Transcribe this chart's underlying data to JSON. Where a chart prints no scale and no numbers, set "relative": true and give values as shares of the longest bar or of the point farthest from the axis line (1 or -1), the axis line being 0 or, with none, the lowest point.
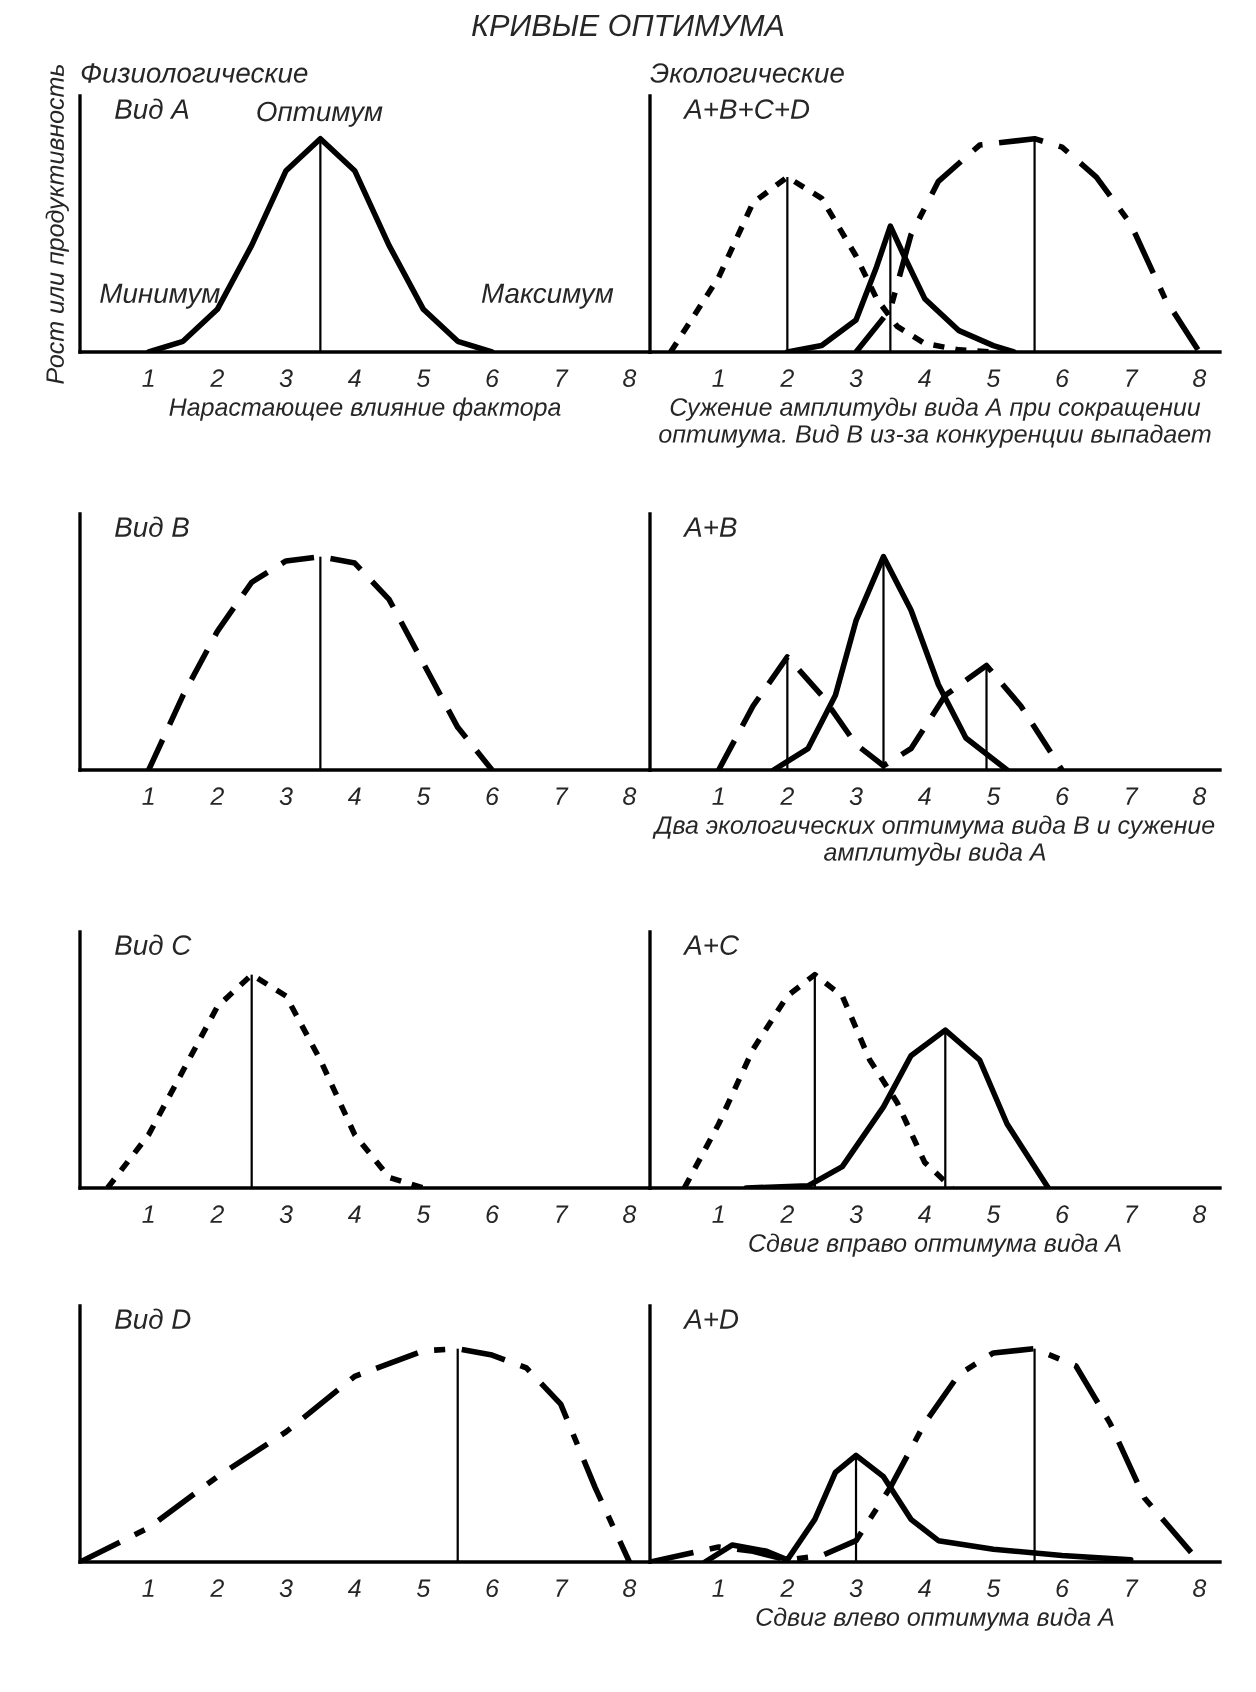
{
  "chart_data": [
    {
      "type": "line",
      "relative": true,
      "title": "Вид А",
      "xlabel": "Нарастающее влияние фактора",
      "ylabel": "Рост или продуктивность",
      "xlim": [
        0,
        8.3
      ],
      "xticks": [
        1,
        2,
        3,
        4,
        5,
        6,
        7,
        8
      ],
      "tick_labels": "x",
      "grid": false,
      "legend": false,
      "annotations": [
        "КРИВЫЕ ОПТИМУМА",
        "Физиологические",
        "Оптимум",
        "Минимум",
        "Максимум"
      ],
      "ref_lines": [
        {
          "axis": "x",
          "value": 3.5,
          "color": "#000000"
        }
      ],
      "series": [
        {
          "color": "#000000",
          "line_style": "solid",
          "x": [
            1,
            1.5,
            2,
            2.5,
            3,
            3.5,
            4,
            4.5,
            5,
            5.5,
            6
          ],
          "values": [
            0,
            0.05,
            0.2,
            0.5,
            0.85,
            1,
            0.85,
            0.5,
            0.2,
            0.05,
            0
          ]
        }
      ]
    },
    {
      "type": "line",
      "relative": true,
      "title": "А+В+С+D",
      "xlabel": "Сужение амплитуды вида А при сокращении оптимума. Вид В из-за конкуренции выпадает",
      "xlim": [
        0,
        8.3
      ],
      "xticks": [
        1,
        2,
        3,
        4,
        5,
        6,
        7,
        8
      ],
      "tick_labels": "x",
      "grid": false,
      "legend": false,
      "annotations": [
        "Экологические"
      ],
      "ref_lines": [
        {
          "axis": "x",
          "value": 2,
          "color": "#000000"
        },
        {
          "axis": "x",
          "value": 3.5,
          "color": "#000000"
        },
        {
          "axis": "x",
          "value": 5.6,
          "color": "#000000"
        }
      ],
      "series": [
        {
          "color": "#000000",
          "line_style": "dotted",
          "x": [
            0.3,
            1,
            1.5,
            2,
            2.5,
            3,
            3.3,
            3.6,
            4,
            4.5,
            5
          ],
          "values": [
            0,
            0.35,
            0.7,
            0.82,
            0.72,
            0.45,
            0.25,
            0.12,
            0.04,
            0.01,
            0
          ]
        },
        {
          "color": "#000000",
          "line_style": "solid",
          "x": [
            2,
            2.5,
            3,
            3.3,
            3.5,
            3.7,
            4,
            4.5,
            5,
            5.3
          ],
          "values": [
            0,
            0.03,
            0.15,
            0.4,
            0.59,
            0.45,
            0.25,
            0.1,
            0.03,
            0
          ]
        },
        {
          "color": "#000000",
          "line_style": "dashdot",
          "x": [
            3,
            3.5,
            3.8,
            4.2,
            4.8,
            5.6,
            6,
            6.5,
            7,
            7.5,
            8
          ],
          "values": [
            0,
            0.2,
            0.55,
            0.8,
            0.97,
            1,
            0.96,
            0.82,
            0.6,
            0.25,
            0
          ]
        }
      ]
    },
    {
      "type": "line",
      "relative": true,
      "title": "Вид В",
      "xlim": [
        0,
        8.3
      ],
      "xticks": [
        1,
        2,
        3,
        4,
        5,
        6,
        7,
        8
      ],
      "tick_labels": "x",
      "grid": false,
      "legend": false,
      "ref_lines": [
        {
          "axis": "x",
          "value": 3.5,
          "color": "#000000"
        }
      ],
      "series": [
        {
          "color": "#000000",
          "line_style": "dashed",
          "x": [
            1,
            1.5,
            2,
            2.5,
            3,
            3.5,
            4,
            4.5,
            5,
            5.5,
            6
          ],
          "values": [
            0,
            0.35,
            0.65,
            0.88,
            0.98,
            1,
            0.97,
            0.8,
            0.5,
            0.2,
            0
          ]
        }
      ]
    },
    {
      "type": "line",
      "relative": true,
      "title": "А+В",
      "xlabel": "Два экологических оптимума вида В и сужение амплитуды вида А",
      "xlim": [
        0,
        8.3
      ],
      "xticks": [
        1,
        2,
        3,
        4,
        5,
        6,
        7,
        8
      ],
      "tick_labels": "x",
      "grid": false,
      "legend": false,
      "ref_lines": [
        {
          "axis": "x",
          "value": 2,
          "color": "#000000"
        },
        {
          "axis": "x",
          "value": 3.4,
          "color": "#000000"
        },
        {
          "axis": "x",
          "value": 4.9,
          "color": "#000000"
        }
      ],
      "series": [
        {
          "color": "#000000",
          "line_style": "solid",
          "x": [
            1.8,
            2.3,
            2.7,
            3,
            3.4,
            3.8,
            4.2,
            4.6,
            5.2
          ],
          "values": [
            0,
            0.1,
            0.35,
            0.7,
            1,
            0.75,
            0.4,
            0.15,
            0
          ]
        },
        {
          "color": "#000000",
          "line_style": "dashed",
          "x": [
            1,
            1.5,
            2,
            2.5,
            3,
            3.4,
            3.8,
            4.3,
            4.9,
            5.4,
            6
          ],
          "values": [
            0,
            0.3,
            0.53,
            0.35,
            0.12,
            0.02,
            0.1,
            0.35,
            0.49,
            0.3,
            0
          ]
        }
      ]
    },
    {
      "type": "line",
      "relative": true,
      "title": "Вид С",
      "xlim": [
        0,
        8.3
      ],
      "xticks": [
        1,
        2,
        3,
        4,
        5,
        6,
        7,
        8
      ],
      "tick_labels": "x",
      "grid": false,
      "legend": false,
      "ref_lines": [
        {
          "axis": "x",
          "value": 2.5,
          "color": "#000000"
        }
      ],
      "series": [
        {
          "color": "#000000",
          "line_style": "dotted",
          "x": [
            0.4,
            1,
            1.5,
            2,
            2.5,
            3,
            3.5,
            4,
            4.5,
            5
          ],
          "values": [
            0,
            0.25,
            0.55,
            0.85,
            1,
            0.9,
            0.6,
            0.25,
            0.05,
            0
          ]
        }
      ]
    },
    {
      "type": "line",
      "relative": true,
      "title": "А+С",
      "xlabel": "Сдвиг вправо оптимума вида А",
      "xlim": [
        0,
        8.3
      ],
      "xticks": [
        1,
        2,
        3,
        4,
        5,
        6,
        7,
        8
      ],
      "tick_labels": "x",
      "grid": false,
      "legend": false,
      "ref_lines": [
        {
          "axis": "x",
          "value": 2.4,
          "color": "#000000"
        },
        {
          "axis": "x",
          "value": 4.3,
          "color": "#000000"
        }
      ],
      "series": [
        {
          "color": "#000000",
          "line_style": "dotted",
          "x": [
            0.5,
            1,
            1.5,
            2,
            2.4,
            2.8,
            3.2,
            3.6,
            4,
            4.4
          ],
          "values": [
            0,
            0.3,
            0.65,
            0.9,
            1,
            0.9,
            0.6,
            0.4,
            0.12,
            0
          ]
        },
        {
          "color": "#000000",
          "line_style": "solid",
          "x": [
            1.4,
            2.3,
            2.8,
            3.4,
            3.8,
            4.3,
            4.8,
            5.2,
            5.8
          ],
          "values": [
            0,
            0.01,
            0.1,
            0.38,
            0.62,
            0.74,
            0.6,
            0.3,
            0
          ]
        }
      ]
    },
    {
      "type": "line",
      "relative": true,
      "title": "Вид D",
      "xlim": [
        0,
        8.3
      ],
      "xticks": [
        1,
        2,
        3,
        4,
        5,
        6,
        7,
        8
      ],
      "tick_labels": "x",
      "grid": false,
      "legend": false,
      "ref_lines": [
        {
          "axis": "x",
          "value": 5.5,
          "color": "#000000"
        }
      ],
      "series": [
        {
          "color": "#000000",
          "line_style": "dashdot",
          "x": [
            0,
            1,
            2,
            3,
            4,
            5,
            5.5,
            6,
            6.5,
            7,
            7.5,
            8
          ],
          "values": [
            0,
            0.16,
            0.4,
            0.61,
            0.87,
            0.99,
            1,
            0.97,
            0.91,
            0.74,
            0.35,
            0
          ]
        }
      ]
    },
    {
      "type": "line",
      "relative": true,
      "title": "А+D",
      "xlabel": "Сдвиг влево оптимума вида А",
      "xlim": [
        0,
        8.3
      ],
      "xticks": [
        1,
        2,
        3,
        4,
        5,
        6,
        7,
        8
      ],
      "tick_labels": "x",
      "grid": false,
      "legend": false,
      "ref_lines": [
        {
          "axis": "x",
          "value": 3,
          "color": "#000000"
        },
        {
          "axis": "x",
          "value": 5.6,
          "color": "#000000"
        }
      ],
      "series": [
        {
          "color": "#000000",
          "line_style": "solid",
          "x": [
            0.8,
            1.2,
            1.7,
            2,
            2.4,
            2.7,
            3,
            3.4,
            3.8,
            4.2,
            5,
            6,
            7
          ],
          "values": [
            0,
            0.08,
            0.05,
            0.01,
            0.2,
            0.42,
            0.5,
            0.4,
            0.2,
            0.1,
            0.06,
            0.03,
            0.01
          ]
        },
        {
          "color": "#000000",
          "line_style": "dashdot",
          "x": [
            0,
            1,
            1.5,
            2,
            2.5,
            3,
            3.5,
            4,
            4.5,
            5,
            5.6,
            6.2,
            6.7,
            7.2,
            8
          ],
          "values": [
            0,
            0.07,
            0.05,
            0.01,
            0.03,
            0.1,
            0.35,
            0.65,
            0.88,
            0.98,
            1,
            0.92,
            0.65,
            0.3,
            0
          ]
        }
      ]
    }
  ]
}
